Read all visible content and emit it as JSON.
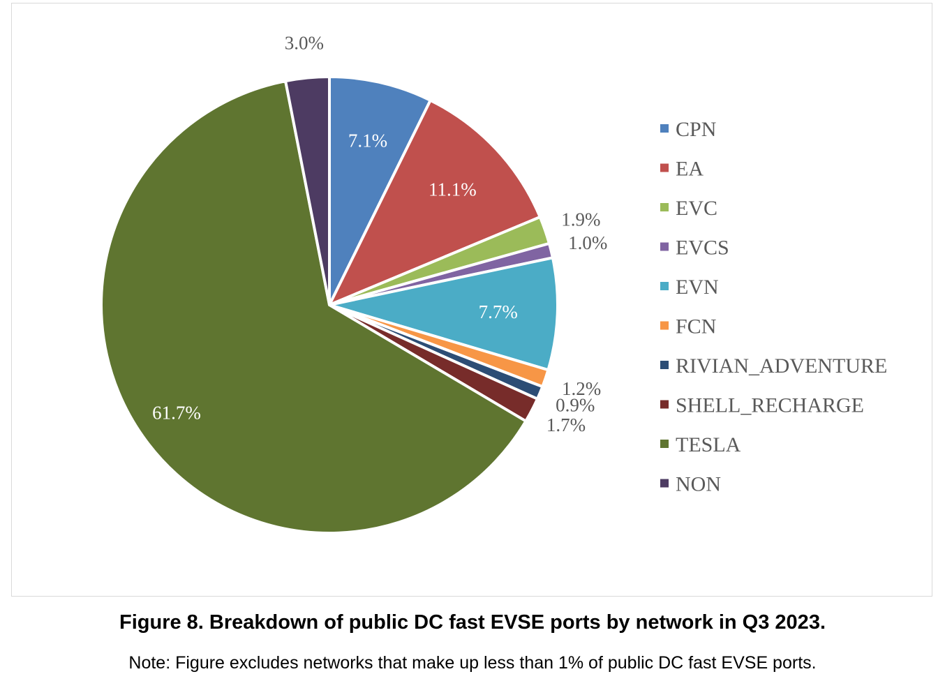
{
  "chart_data": {
    "type": "pie",
    "categories": [
      "CPN",
      "EA",
      "EVC",
      "EVCS",
      "EVN",
      "FCN",
      "RIVIAN_ADVENTURE",
      "SHELL_RECHARGE",
      "TESLA",
      "NON"
    ],
    "values": [
      7.1,
      11.1,
      1.9,
      1.0,
      7.7,
      1.2,
      0.9,
      1.7,
      61.7,
      3.0
    ],
    "labels": [
      "7.1%",
      "11.1%",
      "1.9%",
      "1.0%",
      "7.7%",
      "1.2%",
      "0.9%",
      "1.7%",
      "61.7%",
      "3.0%"
    ],
    "colors": [
      "#4f81bd",
      "#c0504d",
      "#9bbb59",
      "#8064a2",
      "#4bacc6",
      "#f79646",
      "#2c4d75",
      "#772c2a",
      "#5f7530",
      "#4d3b62"
    ],
    "legend_position": "right",
    "start_angle": "top, clockwise"
  },
  "caption": {
    "title": "Figure 8. Breakdown of public DC fast EVSE ports by network in Q3 2023.",
    "note": "Note: Figure excludes networks that make up less than 1% of public DC fast EVSE ports."
  }
}
